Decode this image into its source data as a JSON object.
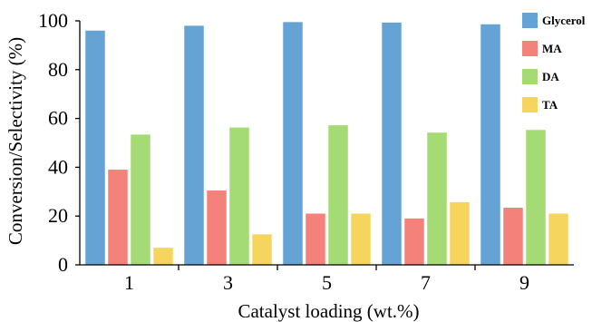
{
  "chart_data": {
    "type": "bar",
    "categories": [
      "1",
      "3",
      "5",
      "7",
      "9"
    ],
    "series": [
      {
        "name": "Glycerol",
        "color": "#64a3d3",
        "values": [
          96,
          98,
          99.5,
          99.3,
          98.6
        ]
      },
      {
        "name": "MA",
        "color": "#f4827a",
        "values": [
          39,
          30.5,
          21,
          19,
          23.4
        ]
      },
      {
        "name": "DA",
        "color": "#a5db74",
        "values": [
          53.4,
          56.3,
          57.2,
          54.2,
          55.3
        ]
      },
      {
        "name": "TA",
        "color": "#f5d55e",
        "values": [
          7,
          12.5,
          21,
          25.7,
          21
        ]
      }
    ],
    "xlabel": "Catalyst loading (wt.%)",
    "ylabel": "Conversion/Selectivity (%)",
    "ylim": [
      0,
      100
    ],
    "yticks": [
      "0",
      "20",
      "40",
      "60",
      "80",
      "100"
    ],
    "grid": false,
    "legend_position": "top-right"
  }
}
